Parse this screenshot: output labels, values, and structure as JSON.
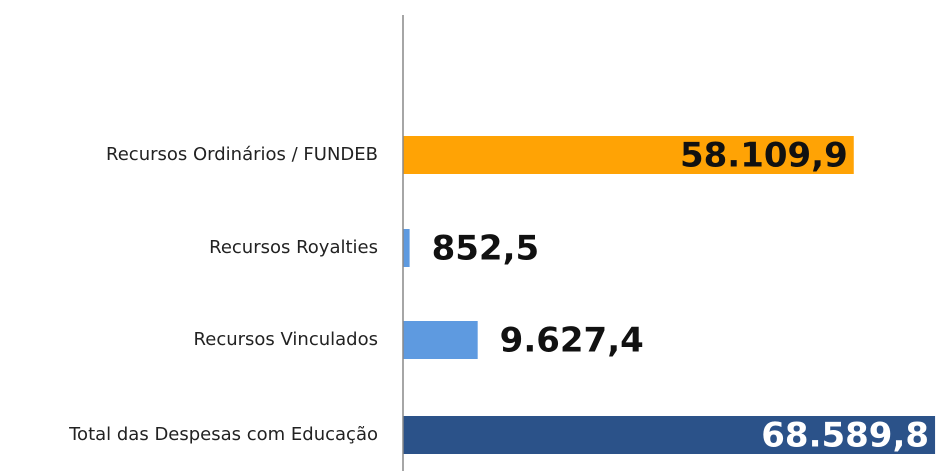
{
  "chart_data": {
    "type": "barh",
    "categories": [
      "Recursos Ordinários / FUNDEB",
      "Recursos Royalties",
      "Recursos Vinculados",
      "Total das Despesas com Educação"
    ],
    "values": [
      58109.9,
      852.5,
      9627.4,
      68589.8
    ],
    "value_labels": [
      "58.109,9",
      "852,5",
      "9.627,4",
      "68.589,8"
    ],
    "colors": [
      "#ffa305",
      "#5e9ae0",
      "#5e9ae0",
      "#2b5289"
    ],
    "xlim": [
      0,
      70000
    ]
  }
}
